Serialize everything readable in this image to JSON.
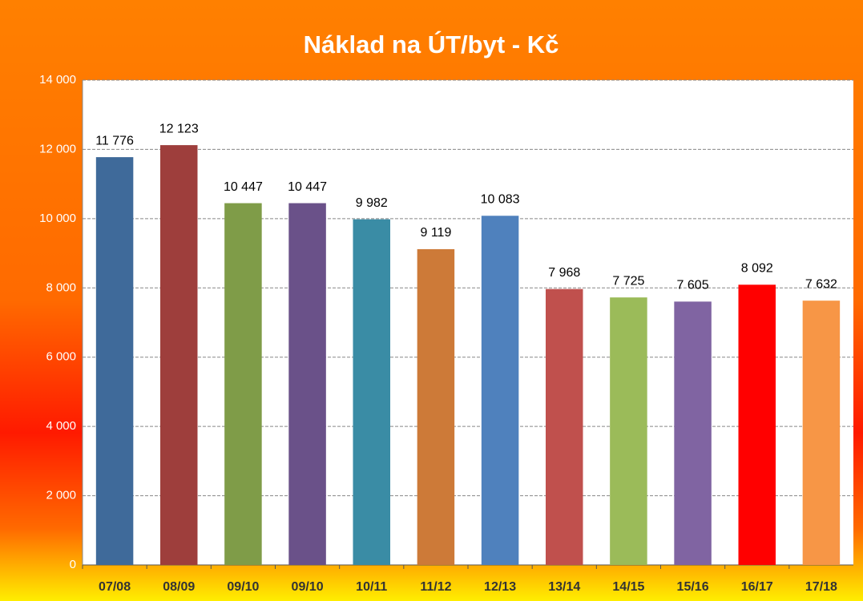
{
  "chart_data": {
    "type": "bar",
    "title": "Náklad na ÚT/byt - Kč",
    "categories": [
      "07/08",
      "08/09",
      "09/10",
      "09/10",
      "10/11",
      "11/12",
      "12/13",
      "13/14",
      "14/15",
      "15/16",
      "16/17",
      "17/18"
    ],
    "values": [
      11776,
      12123,
      10447,
      10447,
      9982,
      9119,
      10083,
      7968,
      7725,
      7605,
      8092,
      7632
    ],
    "value_labels": [
      "11 776",
      "12 123",
      "10 447",
      "10 447",
      "9 982",
      "9 119",
      "10 083",
      "7 968",
      "7 725",
      "7 605",
      "8 092",
      "7 632"
    ],
    "colors": [
      "#3f6a9a",
      "#9e3e3c",
      "#7f9c48",
      "#6a5189",
      "#3a8ca5",
      "#cd7a38",
      "#4f81bd",
      "#c0504d",
      "#9bbb59",
      "#8064a2",
      "#ff0000",
      "#f79646"
    ],
    "ylim": [
      0,
      14000
    ],
    "yticks": [
      0,
      {
        "value": 2000,
        "label": "2 000"
      },
      {
        "value": 4000,
        "label": "4 000"
      },
      {
        "value": 6000,
        "label": "6 000"
      },
      {
        "value": 8000,
        "label": "8 000"
      },
      {
        "value": 10000,
        "label": "10 000"
      },
      {
        "value": 12000,
        "label": "12 000"
      },
      {
        "value": 14000,
        "label": "14 000"
      }
    ],
    "grid": true
  }
}
